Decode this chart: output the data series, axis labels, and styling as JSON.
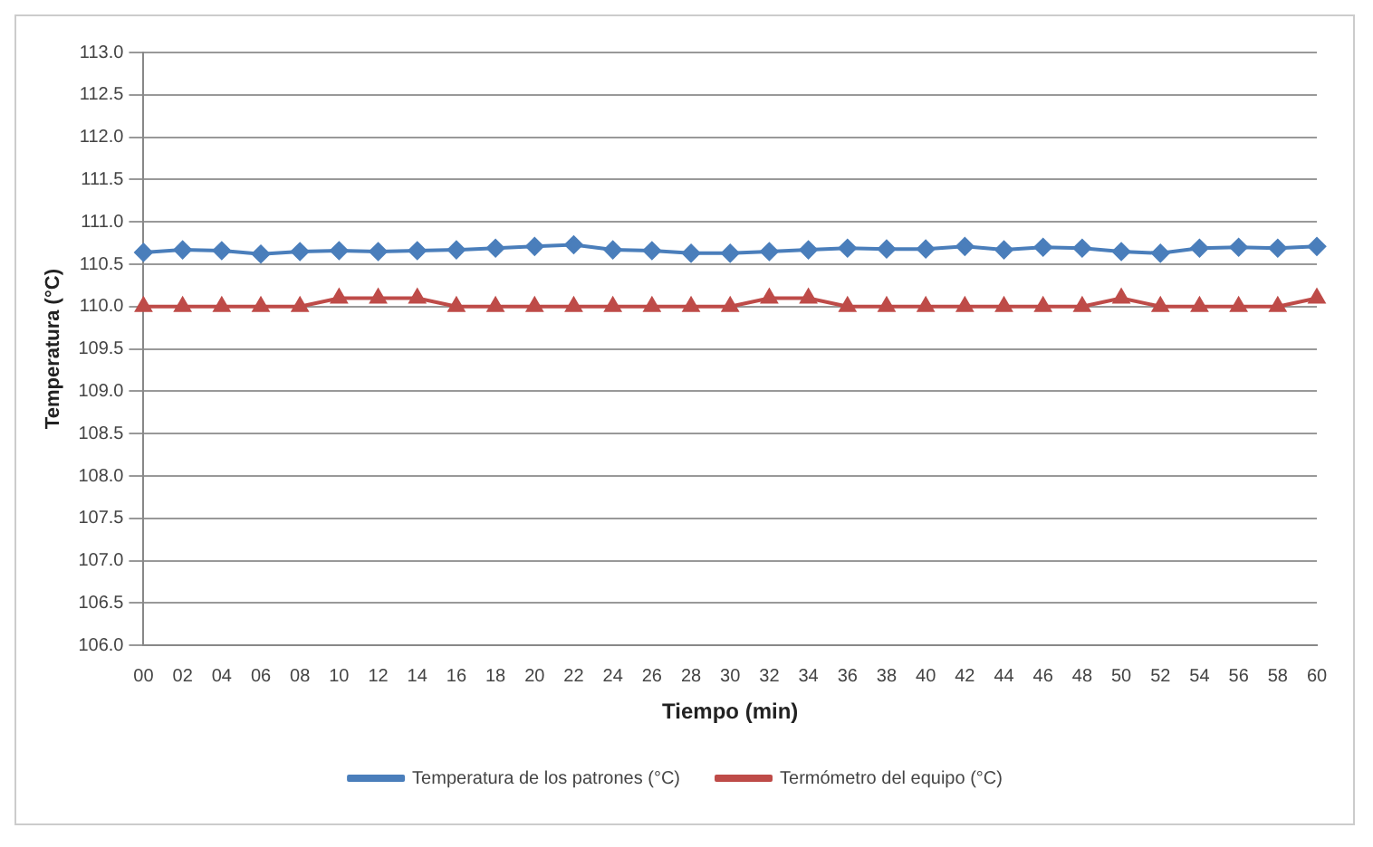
{
  "chart_data": {
    "type": "line",
    "xlabel": "Tiempo (min)",
    "ylabel": "Temperatura (°C)",
    "categories": [
      "00",
      "02",
      "04",
      "06",
      "08",
      "10",
      "12",
      "14",
      "16",
      "18",
      "20",
      "22",
      "24",
      "26",
      "28",
      "30",
      "32",
      "34",
      "36",
      "38",
      "40",
      "42",
      "44",
      "46",
      "48",
      "50",
      "52",
      "54",
      "56",
      "58",
      "60"
    ],
    "series": [
      {
        "name": "Temperatura de los patrones (°C)",
        "color": "#4a7ebb",
        "marker": "diamond",
        "values": [
          110.64,
          110.67,
          110.66,
          110.62,
          110.65,
          110.66,
          110.65,
          110.66,
          110.67,
          110.69,
          110.71,
          110.73,
          110.67,
          110.66,
          110.63,
          110.63,
          110.65,
          110.67,
          110.69,
          110.68,
          110.68,
          110.71,
          110.67,
          110.7,
          110.69,
          110.65,
          110.63,
          110.69,
          110.7,
          110.69,
          110.71
        ]
      },
      {
        "name": "Termómetro del equipo (°C)",
        "color": "#be4b48",
        "marker": "triangle",
        "values": [
          110.0,
          110.0,
          110.0,
          110.0,
          110.0,
          110.1,
          110.1,
          110.1,
          110.0,
          110.0,
          110.0,
          110.0,
          110.0,
          110.0,
          110.0,
          110.0,
          110.1,
          110.1,
          110.0,
          110.0,
          110.0,
          110.0,
          110.0,
          110.0,
          110.0,
          110.1,
          110.0,
          110.0,
          110.0,
          110.0,
          110.1
        ]
      }
    ],
    "ylim": [
      106.0,
      113.0
    ],
    "yticks": [
      {
        "value": 106,
        "label": "106.0"
      },
      {
        "value": 106.5,
        "label": "106.5"
      },
      {
        "value": 107,
        "label": "107.0"
      },
      {
        "value": 107.5,
        "label": "107.5"
      },
      {
        "value": 108,
        "label": "108.0"
      },
      {
        "value": 108.5,
        "label": "108.5"
      },
      {
        "value": 109,
        "label": "109.0"
      },
      {
        "value": 109.5,
        "label": "109.5"
      },
      {
        "value": 110,
        "label": "110.0"
      },
      {
        "value": 110.5,
        "label": "110.5"
      },
      {
        "value": 111,
        "label": "111.0"
      },
      {
        "value": 111.5,
        "label": "111.5"
      },
      {
        "value": 112,
        "label": "112.0"
      },
      {
        "value": 112.5,
        "label": "112.5"
      },
      {
        "value": 113,
        "label": "113.0"
      }
    ],
    "grid": "y",
    "legend": "bottom",
    "line_style": "solid"
  }
}
